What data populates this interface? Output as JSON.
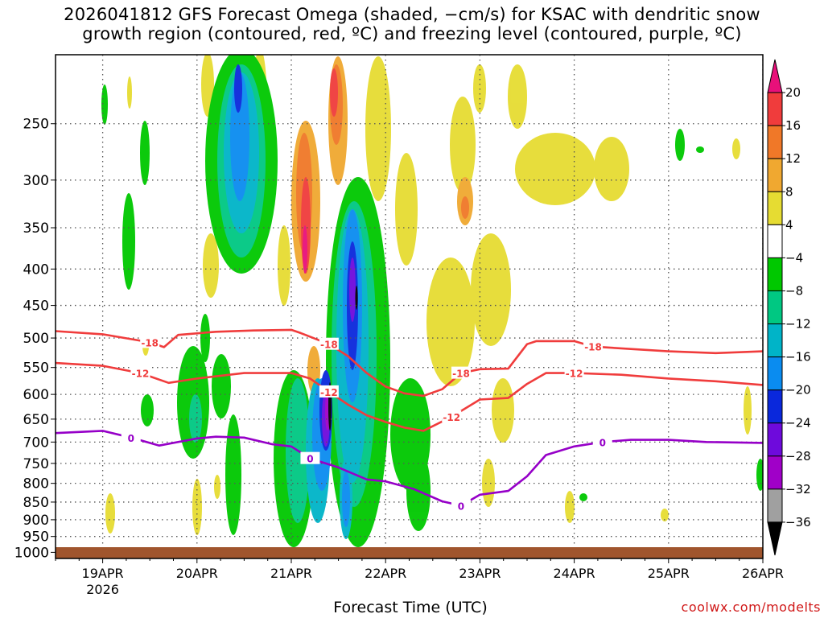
{
  "title": {
    "line1": "2026041812 GFS Forecast Omega (shaded, −cm/s) for KSAC with dendritic snow",
    "line2": "growth region (contoured, red, ºC) and freezing level (contoured, purple, ºC)"
  },
  "credit": "coolwx.com/modelts",
  "chart_data": {
    "type": "heatmap",
    "xlabel": "Forecast Time (UTC)",
    "ylabel": "",
    "x_ticks": [
      {
        "value": 1,
        "label": "19APR",
        "sublabel": "2026"
      },
      {
        "value": 2,
        "label": "20APR"
      },
      {
        "value": 3,
        "label": "21APR"
      },
      {
        "value": 4,
        "label": "22APR"
      },
      {
        "value": 5,
        "label": "23APR"
      },
      {
        "value": 6,
        "label": "24APR"
      },
      {
        "value": 7,
        "label": "25APR"
      },
      {
        "value": 8,
        "label": "26APR"
      }
    ],
    "xlim": [
      0.5,
      8.0
    ],
    "y_ticks": [
      250,
      300,
      350,
      400,
      450,
      500,
      550,
      600,
      650,
      700,
      750,
      800,
      850,
      900,
      950,
      1000
    ],
    "ylim": [
      200,
      1020
    ],
    "yscale": "log",
    "grid": true,
    "colorbar": {
      "labels": [
        "20",
        "16",
        "12",
        "8",
        "4",
        "−4",
        "−8",
        "−12",
        "−16",
        "−20",
        "−24",
        "−28",
        "−32",
        "−36"
      ],
      "colors": [
        "#e8107a",
        "#f03c3c",
        "#f07828",
        "#f0a830",
        "#e6dc32",
        "#ffffff",
        "#00c800",
        "#00c882",
        "#00b4c8",
        "#0a8cf0",
        "#0a28dc",
        "#6e0adc",
        "#a000c8",
        "#a0a0a0",
        "#000000"
      ]
    },
    "contours": [
      {
        "name": "-18",
        "color": "#f03c3c",
        "points": [
          [
            0.5,
            489
          ],
          [
            1.0,
            494
          ],
          [
            1.5,
            507
          ],
          [
            1.65,
            515
          ],
          [
            1.8,
            495
          ],
          [
            2.2,
            490
          ],
          [
            2.6,
            488
          ],
          [
            3.0,
            487
          ],
          [
            3.1,
            492
          ],
          [
            3.4,
            510
          ],
          [
            3.6,
            530
          ],
          [
            3.8,
            560
          ],
          [
            4.0,
            585
          ],
          [
            4.2,
            598
          ],
          [
            4.4,
            603
          ],
          [
            4.6,
            590
          ],
          [
            4.8,
            560
          ],
          [
            5.0,
            553
          ],
          [
            5.3,
            552
          ],
          [
            5.5,
            510
          ],
          [
            5.6,
            505
          ],
          [
            6.0,
            505
          ],
          [
            6.2,
            514
          ],
          [
            6.6,
            518
          ],
          [
            7.0,
            522
          ],
          [
            7.5,
            525
          ],
          [
            8.0,
            522
          ]
        ]
      },
      {
        "name": "-12",
        "color": "#f03c3c",
        "points": [
          [
            0.5,
            542
          ],
          [
            1.0,
            547
          ],
          [
            1.4,
            560
          ],
          [
            1.7,
            578
          ],
          [
            2.0,
            570
          ],
          [
            2.5,
            560
          ],
          [
            3.0,
            560
          ],
          [
            3.2,
            570
          ],
          [
            3.4,
            595
          ],
          [
            3.6,
            620
          ],
          [
            3.8,
            642
          ],
          [
            4.0,
            656
          ],
          [
            4.2,
            668
          ],
          [
            4.4,
            675
          ],
          [
            4.7,
            645
          ],
          [
            5.0,
            610
          ],
          [
            5.3,
            607
          ],
          [
            5.5,
            580
          ],
          [
            5.7,
            560
          ],
          [
            6.0,
            560
          ],
          [
            6.5,
            563
          ],
          [
            7.0,
            570
          ],
          [
            7.5,
            575
          ],
          [
            8.0,
            582
          ]
        ]
      },
      {
        "name": "0",
        "color": "#9600c8",
        "points": [
          [
            0.5,
            680
          ],
          [
            1.0,
            675
          ],
          [
            1.3,
            690
          ],
          [
            1.6,
            708
          ],
          [
            2.0,
            692
          ],
          [
            2.2,
            688
          ],
          [
            2.5,
            690
          ],
          [
            2.8,
            705
          ],
          [
            3.0,
            710
          ],
          [
            3.2,
            738
          ],
          [
            3.5,
            760
          ],
          [
            3.8,
            790
          ],
          [
            4.0,
            795
          ],
          [
            4.3,
            815
          ],
          [
            4.6,
            848
          ],
          [
            4.8,
            860
          ],
          [
            5.0,
            830
          ],
          [
            5.3,
            820
          ],
          [
            5.5,
            782
          ],
          [
            5.7,
            730
          ],
          [
            6.0,
            710
          ],
          [
            6.3,
            700
          ],
          [
            6.6,
            695
          ],
          [
            7.0,
            695
          ],
          [
            7.4,
            700
          ],
          [
            8.0,
            702
          ]
        ]
      }
    ]
  }
}
